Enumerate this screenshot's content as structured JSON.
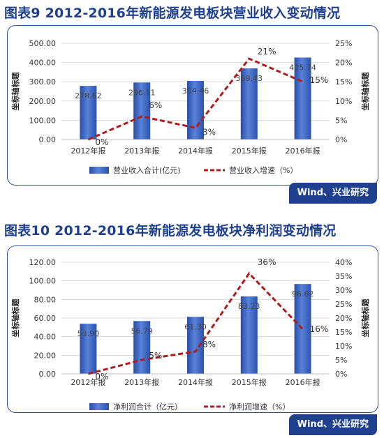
{
  "chart_data": [
    {
      "type": "bar",
      "title": "图表9 2012-2016年新能源发电板块营业收入变动情况",
      "categories": [
        "2012年报",
        "2013年报",
        "2014年报",
        "2015年报",
        "2016年报"
      ],
      "series": [
        {
          "name": "营业收入合计(亿元)",
          "type": "bar",
          "axis": "left",
          "color": "#3a63c4",
          "values": [
            278.62,
            296.11,
            304.46,
            369.43,
            425.74
          ],
          "labels": [
            "278.62",
            "296.11",
            "304.46",
            "369.43",
            "425.74"
          ]
        },
        {
          "name": "营业收入增速（%）",
          "type": "line",
          "style": "dashed",
          "axis": "right",
          "color": "#b01c1c",
          "values": [
            0,
            6,
            3,
            21,
            15
          ],
          "labels": [
            "0%",
            "6%",
            "3%",
            "21%",
            "15%"
          ]
        }
      ],
      "ylabel": "坐标轴标题",
      "y2label": "坐标轴标题",
      "ylim": [
        0,
        500
      ],
      "y2lim": [
        0,
        25
      ],
      "yticks": [
        "0.00",
        "100.00",
        "200.00",
        "300.00",
        "400.00",
        "500.00"
      ],
      "y2ticks": [
        "0%",
        "5%",
        "10%",
        "15%",
        "20%",
        "25%"
      ],
      "grid": true,
      "legend": "bottom",
      "source": "Wind、兴业研究"
    },
    {
      "type": "bar",
      "title": "图表10 2012-2016年新能源发电板块净利润变动情况",
      "categories": [
        "2012年报",
        "2013年报",
        "2014年报",
        "2015年报",
        "2016年报"
      ],
      "series": [
        {
          "name": "净利润合计（亿元）",
          "type": "bar",
          "axis": "left",
          "color": "#3a63c4",
          "values": [
            53.9,
            56.79,
            61.3,
            83.23,
            96.62
          ],
          "labels": [
            "53.90",
            "56.79",
            "61.30",
            "83.23",
            "96.62"
          ]
        },
        {
          "name": "净利润增速（%）",
          "type": "line",
          "style": "dashed",
          "axis": "right",
          "color": "#b01c1c",
          "values": [
            0,
            5,
            8,
            36,
            16
          ],
          "labels": [
            "0%",
            "5%",
            "8%",
            "36%",
            "16%"
          ]
        }
      ],
      "ylabel": "坐标轴标题",
      "y2label": "坐标轴标题",
      "ylim": [
        0,
        120
      ],
      "y2lim": [
        0,
        40
      ],
      "yticks": [
        "0.00",
        "20.00",
        "40.00",
        "60.00",
        "80.00",
        "100.00",
        "120.00"
      ],
      "y2ticks": [
        "0%",
        "5%",
        "10%",
        "15%",
        "20%",
        "25%",
        "30%",
        "35%",
        "40%"
      ],
      "grid": true,
      "legend": "bottom",
      "source": "Wind、兴业研究"
    }
  ]
}
